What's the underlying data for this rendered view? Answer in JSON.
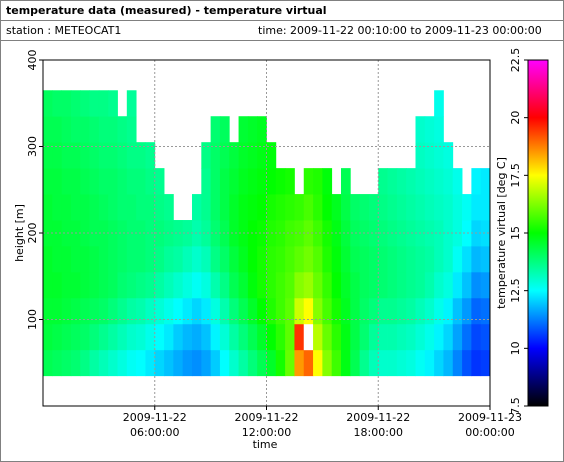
{
  "chart_data": {
    "type": "heatmap",
    "title": "temperature data (measured) - temperature virtual",
    "station": "station : METEOCAT1",
    "time_range": "time: 2009-11-22 00:10:00 to 2009-11-23 00:00:00",
    "xlabel": "time",
    "ylabel": "height [m]",
    "clabel": "temperature virtual [deg C]",
    "xlim": [
      0,
      24
    ],
    "ylim": [
      0,
      400
    ],
    "xticks": [
      {
        "value": 6,
        "label": [
          "2009-11-22",
          "06:00:00"
        ]
      },
      {
        "value": 12,
        "label": [
          "2009-11-22",
          "12:00:00"
        ]
      },
      {
        "value": 18,
        "label": [
          "2009-11-22",
          "18:00:00"
        ]
      },
      {
        "value": 24,
        "label": [
          "2009-11-23",
          "00:00:00"
        ]
      }
    ],
    "yticks": [
      100,
      200,
      300,
      400
    ],
    "clim": [
      7.5,
      22.5
    ],
    "cticks": [
      7.5,
      10,
      12.5,
      15,
      17.5,
      20,
      22.5
    ],
    "colormap": [
      "#000000",
      "#0000ff",
      "#00ffff",
      "#00ff00",
      "#ffff00",
      "#ff0000",
      "#ff00ff"
    ],
    "over_color": "#ffffff",
    "grid": true,
    "xbins": [
      0,
      0.5,
      1,
      1.5,
      2,
      2.5,
      3,
      3.5,
      4,
      4.5,
      5,
      5.5,
      6,
      6.5,
      7,
      7.5,
      8,
      8.5,
      9,
      9.5,
      10,
      10.5,
      11,
      11.5,
      12,
      12.5,
      13,
      13.5,
      14,
      14.5,
      15,
      15.5,
      16,
      16.5,
      17,
      17.5,
      18,
      18.5,
      19,
      19.5,
      20,
      20.5,
      21,
      21.5,
      22,
      22.5,
      23,
      23.5,
      24
    ],
    "ybins": [
      35,
      65,
      95,
      125,
      155,
      185,
      215,
      245,
      275,
      305,
      335,
      365
    ],
    "values": [
      [
        14.2,
        14.4,
        14.5,
        14.6,
        14.6,
        14.5,
        14.5,
        14.4,
        14.3,
        14.2,
        14.1
      ],
      [
        14.1,
        14.3,
        14.5,
        14.6,
        14.5,
        14.5,
        14.4,
        14.4,
        14.3,
        14.2,
        14.0
      ],
      [
        14.0,
        14.2,
        14.4,
        14.5,
        14.5,
        14.4,
        14.4,
        14.3,
        14.2,
        14.1,
        14.0
      ],
      [
        13.9,
        14.1,
        14.3,
        14.5,
        14.4,
        14.4,
        14.3,
        14.3,
        14.2,
        14.0,
        13.9
      ],
      [
        13.7,
        14.0,
        14.2,
        14.4,
        14.4,
        14.3,
        14.3,
        14.2,
        14.1,
        14.0,
        13.8
      ],
      [
        13.4,
        13.8,
        14.1,
        14.3,
        14.3,
        14.2,
        14.2,
        14.1,
        14.0,
        13.9,
        13.7
      ],
      [
        13.2,
        13.6,
        14.0,
        14.2,
        14.2,
        14.2,
        14.1,
        14.0,
        13.9,
        13.8,
        13.7
      ],
      [
        13.0,
        13.4,
        13.8,
        14.1,
        14.1,
        14.1,
        14.0,
        14.0,
        13.9,
        13.8,
        13.6
      ],
      [
        12.8,
        13.2,
        13.6,
        13.9,
        14.0,
        14.0,
        13.9,
        13.9,
        13.8,
        13.7,
        null
      ],
      [
        12.6,
        13.0,
        13.4,
        13.8,
        13.9,
        13.9,
        13.9,
        13.8,
        13.7,
        13.6,
        13.5
      ],
      [
        12.5,
        12.9,
        13.3,
        13.7,
        13.9,
        13.9,
        13.8,
        13.8,
        13.7,
        null,
        null
      ],
      [
        12.3,
        12.7,
        13.1,
        13.6,
        13.8,
        13.8,
        13.8,
        13.7,
        13.6,
        null,
        null
      ],
      [
        12.1,
        12.5,
        12.9,
        13.4,
        13.7,
        13.8,
        13.7,
        13.6,
        null,
        null,
        null
      ],
      [
        11.9,
        12.3,
        12.7,
        13.2,
        13.5,
        13.7,
        13.6,
        null,
        null,
        null,
        null
      ],
      [
        11.7,
        12.0,
        12.5,
        13.0,
        13.4,
        13.6,
        null,
        null,
        null,
        null,
        null
      ],
      [
        11.5,
        11.8,
        12.3,
        12.8,
        13.2,
        13.5,
        null,
        null,
        null,
        null,
        null
      ],
      [
        11.4,
        11.7,
        12.1,
        12.6,
        13.0,
        13.3,
        13.4,
        null,
        null,
        null,
        null
      ],
      [
        11.6,
        11.9,
        12.3,
        12.8,
        13.2,
        13.5,
        13.6,
        13.6,
        13.7,
        null,
        null
      ],
      [
        12.0,
        12.4,
        12.8,
        13.3,
        13.7,
        13.9,
        14.0,
        14.0,
        14.0,
        13.9,
        null
      ],
      [
        12.5,
        12.9,
        13.3,
        13.7,
        14.0,
        14.2,
        14.3,
        14.3,
        14.2,
        14.1,
        null
      ],
      [
        13.0,
        13.4,
        13.8,
        14.2,
        14.4,
        14.6,
        14.6,
        14.5,
        14.4,
        null,
        null
      ],
      [
        13.4,
        13.8,
        14.2,
        14.5,
        14.7,
        14.8,
        14.8,
        14.7,
        14.6,
        14.5,
        null
      ],
      [
        13.8,
        14.2,
        14.6,
        14.9,
        15.0,
        15.0,
        14.9,
        14.8,
        14.7,
        14.6,
        null
      ],
      [
        14.2,
        14.6,
        15.0,
        15.2,
        15.2,
        15.1,
        15.0,
        14.9,
        14.8,
        14.7,
        null
      ],
      [
        14.6,
        15.0,
        15.3,
        15.4,
        15.4,
        15.3,
        15.2,
        15.0,
        14.9,
        null,
        null
      ],
      [
        15.2,
        15.4,
        15.6,
        15.6,
        15.5,
        15.4,
        15.3,
        15.1,
        null,
        null,
        null
      ],
      [
        16.0,
        15.9,
        15.9,
        15.8,
        15.7,
        15.6,
        15.4,
        15.2,
        null,
        null,
        null
      ],
      [
        18.5,
        19.5,
        17.0,
        16.3,
        15.9,
        15.7,
        15.5,
        null,
        null,
        null,
        null
      ],
      [
        19.0,
        24.0,
        17.5,
        16.5,
        16.1,
        15.9,
        15.7,
        15.4,
        null,
        null,
        null
      ],
      [
        17.5,
        16.8,
        16.3,
        16.0,
        15.8,
        15.6,
        15.4,
        15.3,
        null,
        null,
        null
      ],
      [
        16.3,
        16.0,
        15.7,
        15.5,
        15.3,
        15.2,
        15.0,
        14.9,
        null,
        null,
        null
      ],
      [
        15.6,
        15.4,
        15.2,
        15.0,
        14.9,
        14.8,
        14.7,
        null,
        null,
        null,
        null
      ],
      [
        14.8,
        14.8,
        14.7,
        14.6,
        14.5,
        14.4,
        14.3,
        14.2,
        null,
        null,
        null
      ],
      [
        14.2,
        14.3,
        14.3,
        14.3,
        14.2,
        14.1,
        14.0,
        null,
        null,
        null,
        null
      ],
      [
        13.6,
        13.9,
        14.0,
        14.1,
        14.1,
        14.0,
        13.9,
        null,
        null,
        null,
        null
      ],
      [
        13.2,
        13.5,
        13.8,
        14.0,
        14.0,
        13.9,
        13.8,
        null,
        null,
        null,
        null
      ],
      [
        13.0,
        13.3,
        13.6,
        13.9,
        13.9,
        13.8,
        13.7,
        13.6,
        null,
        null,
        null
      ],
      [
        13.0,
        13.3,
        13.6,
        13.8,
        13.8,
        13.7,
        13.6,
        13.5,
        null,
        null,
        null
      ],
      [
        12.9,
        13.2,
        13.5,
        13.7,
        13.7,
        13.6,
        13.5,
        13.4,
        null,
        null,
        null
      ],
      [
        12.8,
        13.1,
        13.4,
        13.6,
        13.6,
        13.5,
        13.4,
        13.3,
        null,
        null,
        null
      ],
      [
        12.6,
        12.9,
        13.2,
        13.5,
        13.5,
        13.4,
        13.3,
        13.2,
        13.1,
        13.0,
        null
      ],
      [
        12.4,
        12.7,
        13.0,
        13.3,
        13.4,
        13.3,
        13.2,
        13.1,
        13.0,
        12.9,
        null
      ],
      [
        12.1,
        12.4,
        12.7,
        13.0,
        13.2,
        13.2,
        13.1,
        13.0,
        12.9,
        12.8,
        12.7
      ],
      [
        11.8,
        12.1,
        12.4,
        12.8,
        13.0,
        13.0,
        13.0,
        12.9,
        12.8,
        null,
        null
      ],
      [
        11.3,
        11.6,
        11.9,
        12.3,
        12.6,
        12.8,
        12.8,
        12.7,
        null,
        null,
        null
      ],
      [
        10.8,
        11.1,
        11.5,
        11.9,
        12.2,
        12.5,
        12.6,
        null,
        null,
        null,
        null
      ],
      [
        10.5,
        10.7,
        11.0,
        11.4,
        11.8,
        12.1,
        12.3,
        12.4,
        null,
        null,
        null
      ],
      [
        10.6,
        10.8,
        11.1,
        11.5,
        11.9,
        12.2,
        12.3,
        12.3,
        null,
        null,
        null
      ]
    ]
  }
}
